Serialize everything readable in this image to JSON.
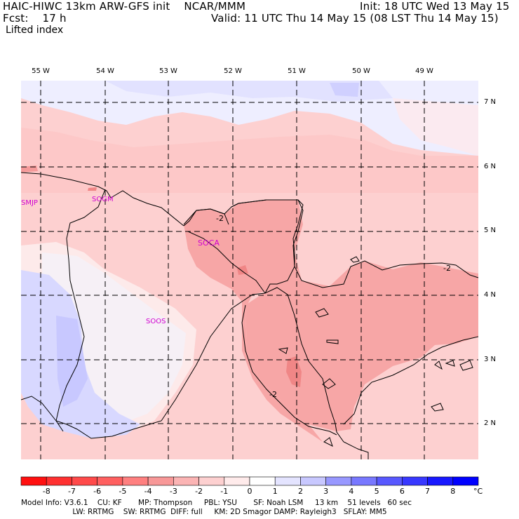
{
  "header": {
    "model_line": "HAIC-HIWC 13km ARW-GFS init    NCAR/MMM",
    "init": "Init: 18 UTC Wed 13 May 15",
    "fcst": "Fcst:    17 h",
    "valid": "Valid: 11 UTC Thu 14 May 15 (08 LST Thu 14 May 15)",
    "field": "Lifted index"
  },
  "longitudes": [
    "55 W",
    "54 W",
    "53 W",
    "52 W",
    "51 W",
    "50 W",
    "49 W"
  ],
  "latitudes": [
    "7 N",
    "6 N",
    "5 N",
    "4 N",
    "3 N",
    "2 N"
  ],
  "stations": [
    "SMJP",
    "SOGM",
    "SOCA",
    "SOOS"
  ],
  "contour_labels": [
    "-2",
    "-2",
    "-2"
  ],
  "colorbar": {
    "ticks": [
      "-8",
      "-7",
      "-6",
      "-5",
      "-4",
      "-3",
      "-2",
      "-1",
      "0",
      "1",
      "2",
      "3",
      "4",
      "5",
      "6",
      "7",
      "8"
    ],
    "unit": "°C",
    "colors": [
      "#ff1010",
      "#ff3030",
      "#ff4a4a",
      "#ff6060",
      "#ff8080",
      "#f89898",
      "#fbb4b4",
      "#fdd0d0",
      "#ffebeb",
      "#ffffff",
      "#e4e4ff",
      "#c8c8ff",
      "#9898ff",
      "#7878ff",
      "#5858ff",
      "#3838ff",
      "#1818ff",
      "#0000ff"
    ]
  },
  "footer": {
    "line1": "Model Info: V3.6.1    CU: KF       MP: Thompson     PBL: YSU       SF: Noah LSM     13 km    51 levels   60 sec",
    "line2": "                      LW: RRTMG    SW: RRTMG  DIFF: full     KM: 2D Smagor DAMP: Rayleigh3   SFLAY: MM5"
  }
}
